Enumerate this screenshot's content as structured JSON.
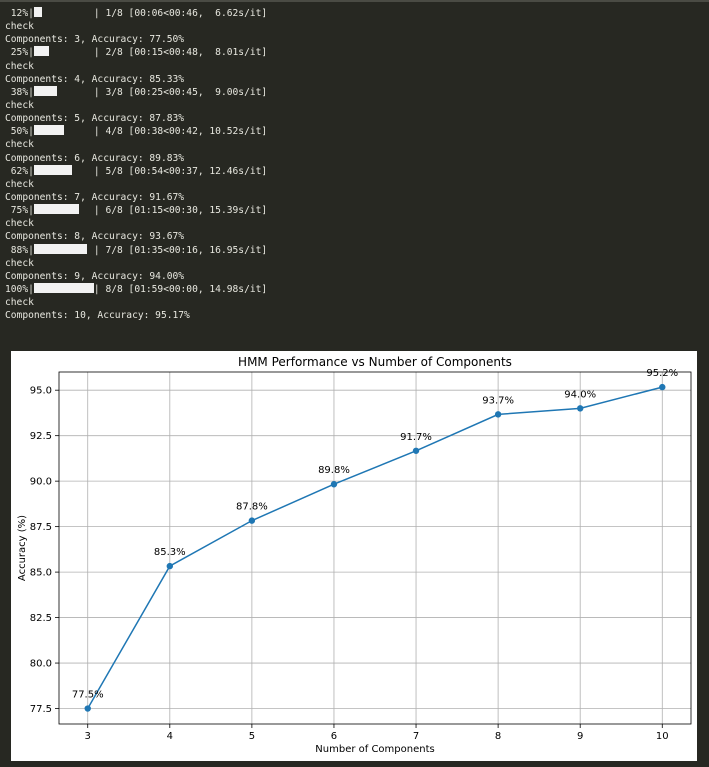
{
  "console": {
    "lines": [
      {
        "kind": "progress",
        "pct_label": " 12%|",
        "fraction": 0.125,
        "rest": "| 1/8 [00:06<00:46,  6.62s/it]"
      },
      {
        "kind": "text",
        "text": "check"
      },
      {
        "kind": "text",
        "text": "Components: 3, Accuracy: 77.50%"
      },
      {
        "kind": "progress",
        "pct_label": " 25%|",
        "fraction": 0.25,
        "rest": "| 2/8 [00:15<00:48,  8.01s/it]"
      },
      {
        "kind": "text",
        "text": "check"
      },
      {
        "kind": "text",
        "text": "Components: 4, Accuracy: 85.33%"
      },
      {
        "kind": "progress",
        "pct_label": " 38%|",
        "fraction": 0.375,
        "rest": "| 3/8 [00:25<00:45,  9.00s/it]"
      },
      {
        "kind": "text",
        "text": "check"
      },
      {
        "kind": "text",
        "text": "Components: 5, Accuracy: 87.83%"
      },
      {
        "kind": "progress",
        "pct_label": " 50%|",
        "fraction": 0.5,
        "rest": "| 4/8 [00:38<00:42, 10.52s/it]"
      },
      {
        "kind": "text",
        "text": "check"
      },
      {
        "kind": "text",
        "text": "Components: 6, Accuracy: 89.83%"
      },
      {
        "kind": "progress",
        "pct_label": " 62%|",
        "fraction": 0.625,
        "rest": "| 5/8 [00:54<00:37, 12.46s/it]"
      },
      {
        "kind": "text",
        "text": "check"
      },
      {
        "kind": "text",
        "text": "Components: 7, Accuracy: 91.67%"
      },
      {
        "kind": "progress",
        "pct_label": " 75%|",
        "fraction": 0.75,
        "rest": "| 6/8 [01:15<00:30, 15.39s/it]"
      },
      {
        "kind": "text",
        "text": "check"
      },
      {
        "kind": "text",
        "text": "Components: 8, Accuracy: 93.67%"
      },
      {
        "kind": "progress",
        "pct_label": " 88%|",
        "fraction": 0.875,
        "rest": "| 7/8 [01:35<00:16, 16.95s/it]"
      },
      {
        "kind": "text",
        "text": "check"
      },
      {
        "kind": "text",
        "text": "Components: 9, Accuracy: 94.00%"
      },
      {
        "kind": "progress",
        "pct_label": "100%|",
        "fraction": 1.0,
        "rest": "| 8/8 [01:59<00:00, 14.98s/it]"
      },
      {
        "kind": "text",
        "text": "check"
      },
      {
        "kind": "text",
        "text": "Components: 10, Accuracy: 95.17%"
      }
    ]
  },
  "chart_data": {
    "type": "line",
    "title": "HMM Performance vs Number of Components",
    "xlabel": "Number of Components",
    "ylabel": "Accuracy (%)",
    "x": [
      3,
      4,
      5,
      6,
      7,
      8,
      9,
      10
    ],
    "series": [
      {
        "values": [
          77.5,
          85.33,
          87.83,
          89.83,
          91.67,
          93.67,
          94.0,
          95.17
        ],
        "color": "#1f77b4",
        "marker": "circle"
      }
    ],
    "data_labels": [
      "77.5%",
      "85.3%",
      "87.8%",
      "89.8%",
      "91.7%",
      "93.7%",
      "94.0%",
      "95.2%"
    ],
    "xticks": [
      "3",
      "4",
      "5",
      "6",
      "7",
      "8",
      "9",
      "10"
    ],
    "yticks": [
      "77.5",
      "80.0",
      "82.5",
      "85.0",
      "87.5",
      "90.0",
      "92.5",
      "95.0"
    ],
    "xlim": [
      2.65,
      10.35
    ],
    "ylim": [
      76.65,
      96.0
    ],
    "grid": true
  }
}
